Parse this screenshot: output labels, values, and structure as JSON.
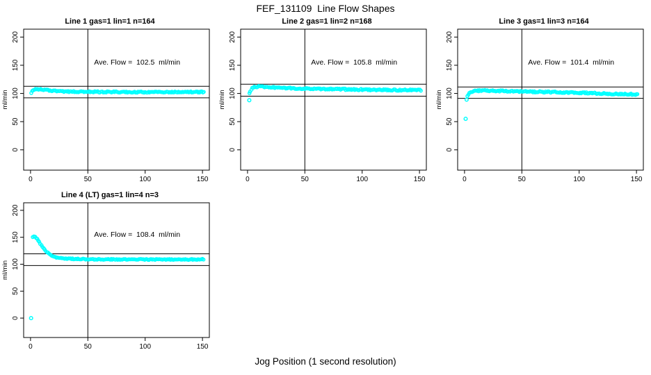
{
  "main_title": "FEF_131109  Line Flow Shapes",
  "x_axis_label": "Jog Position (1 second resolution)",
  "colors": {
    "point": "#00FFFF",
    "axis": "#000000",
    "background": "#FFFFFF"
  },
  "chart_data": {
    "type": "scatter",
    "shared": {
      "ylabel": "ml/min",
      "x_ticks": [
        0,
        50,
        100,
        150
      ],
      "y_ticks": [
        0,
        50,
        100,
        150,
        200
      ],
      "xlim": [
        -6,
        156
      ],
      "ylim": [
        -36,
        214
      ],
      "vline_x": 50,
      "grid": false,
      "legend": "none"
    },
    "plots": [
      {
        "title": "Line 1 gas=1 lin=1 n=164",
        "n": 164,
        "ave_flow_ml_min": 102.5,
        "annotation": "Ave. Flow =  102.5  ml/min",
        "hlines": [
          112.75,
          92.25
        ],
        "noise": 1.1,
        "keypoints": [
          [
            0.5,
            100
          ],
          [
            1.5,
            104
          ],
          [
            3,
            107
          ],
          [
            5,
            108
          ],
          [
            8,
            107.5
          ],
          [
            12,
            106.5
          ],
          [
            16,
            105.5
          ],
          [
            22,
            104.5
          ],
          [
            30,
            103.5
          ],
          [
            45,
            103
          ],
          [
            60,
            102.8
          ],
          [
            80,
            102.5
          ],
          [
            100,
            102.5
          ],
          [
            120,
            102.5
          ],
          [
            135,
            102.6
          ],
          [
            151,
            102.5
          ]
        ],
        "outliers": []
      },
      {
        "title": "Line 2 gas=1 lin=2 n=168",
        "n": 168,
        "ave_flow_ml_min": 105.8,
        "annotation": "Ave. Flow =  105.8  ml/min",
        "hlines": [
          116.38,
          95.22
        ],
        "noise": 1.2,
        "keypoints": [
          [
            1.5,
            100
          ],
          [
            3,
            106
          ],
          [
            4,
            109
          ],
          [
            6,
            111
          ],
          [
            9,
            112
          ],
          [
            13,
            112
          ],
          [
            18,
            111.5
          ],
          [
            25,
            110.5
          ],
          [
            35,
            109.5
          ],
          [
            50,
            108.5
          ],
          [
            65,
            108
          ],
          [
            80,
            107.5
          ],
          [
            95,
            107
          ],
          [
            110,
            106.5
          ],
          [
            125,
            106.2
          ],
          [
            140,
            106
          ],
          [
            151,
            105.8
          ]
        ],
        "outliers": [
          [
            1.5,
            88
          ]
        ]
      },
      {
        "title": "Line 3 gas=1 lin=3 n=164",
        "n": 164,
        "ave_flow_ml_min": 101.4,
        "annotation": "Ave. Flow =  101.4  ml/min",
        "hlines": [
          111.54,
          91.26
        ],
        "noise": 1.2,
        "keypoints": [
          [
            2.5,
            95
          ],
          [
            4,
            100
          ],
          [
            6,
            103
          ],
          [
            9,
            104.5
          ],
          [
            13,
            105
          ],
          [
            20,
            105
          ],
          [
            30,
            104.5
          ],
          [
            45,
            103.5
          ],
          [
            60,
            103
          ],
          [
            75,
            102.5
          ],
          [
            90,
            101.5
          ],
          [
            105,
            101
          ],
          [
            120,
            100
          ],
          [
            135,
            99
          ],
          [
            151,
            98.5
          ]
        ],
        "outliers": [
          [
            1,
            55
          ],
          [
            1.8,
            89
          ]
        ]
      },
      {
        "title": "Line 4 (LT) gas=1 lin=4 n=3",
        "n": 3,
        "ave_flow_ml_min": 108.4,
        "annotation": "Ave. Flow =  108.4  ml/min",
        "hlines": [
          119.24,
          97.56
        ],
        "noise": 0.9,
        "keypoints": [
          [
            2,
            150
          ],
          [
            3,
            151
          ],
          [
            4,
            150
          ],
          [
            5,
            148.5
          ],
          [
            6,
            146
          ],
          [
            7,
            143
          ],
          [
            8,
            139.5
          ],
          [
            9,
            136.5
          ],
          [
            10,
            133.5
          ],
          [
            11,
            130.5
          ],
          [
            12,
            128
          ],
          [
            13,
            125.5
          ],
          [
            14,
            123
          ],
          [
            16,
            119.5
          ],
          [
            18,
            116.5
          ],
          [
            20,
            114.5
          ],
          [
            23,
            112.5
          ],
          [
            26,
            111.5
          ],
          [
            30,
            110.5
          ],
          [
            36,
            110
          ],
          [
            45,
            109.5
          ],
          [
            60,
            109
          ],
          [
            75,
            109
          ],
          [
            90,
            109
          ],
          [
            105,
            108.8
          ],
          [
            120,
            108.8
          ],
          [
            135,
            108.8
          ],
          [
            145,
            109
          ],
          [
            151,
            109.2
          ]
        ],
        "outliers": [
          [
            0.5,
            0
          ]
        ]
      }
    ]
  }
}
